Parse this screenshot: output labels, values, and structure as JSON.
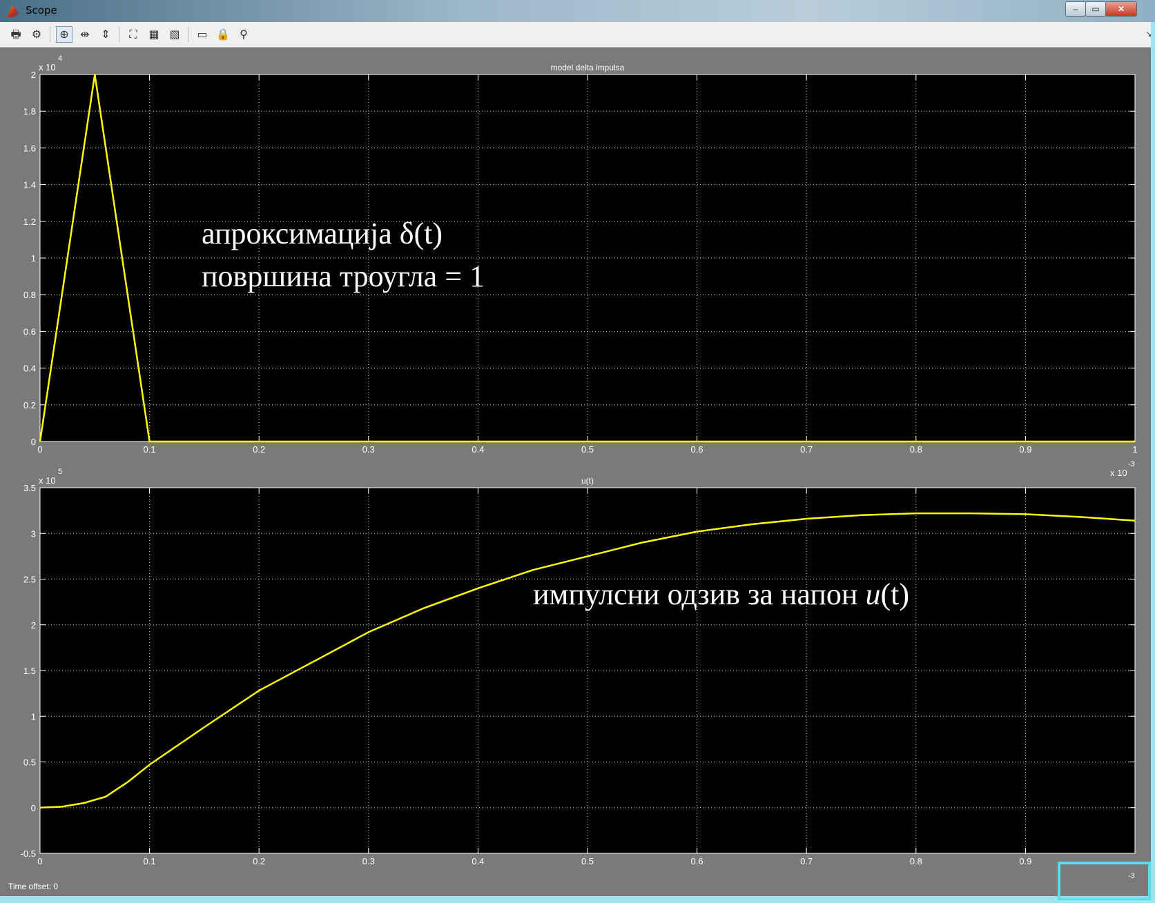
{
  "window": {
    "title": "Scope"
  },
  "toolbar": {
    "items": [
      {
        "name": "print-icon",
        "glyph": "🖶"
      },
      {
        "name": "parameters-icon",
        "glyph": "⚙"
      },
      {
        "name": "zoom-in-icon",
        "glyph": "⊕",
        "active": true
      },
      {
        "name": "zoom-x-icon",
        "glyph": "⇹"
      },
      {
        "name": "zoom-y-icon",
        "glyph": "⇕"
      },
      {
        "name": "autoscale-icon",
        "glyph": "⛶"
      },
      {
        "name": "save-axes-icon",
        "glyph": "▦"
      },
      {
        "name": "restore-axes-icon",
        "glyph": "▧"
      },
      {
        "name": "floating-scope-icon",
        "glyph": "▭"
      },
      {
        "name": "lock-axes-icon",
        "glyph": "🔒"
      },
      {
        "name": "signal-selection-icon",
        "glyph": "⚲"
      }
    ]
  },
  "status": {
    "time_offset": "Time offset:  0"
  },
  "chart_data": [
    {
      "type": "line",
      "title": "model delta impulsa",
      "color": "#ffff00",
      "background": "#000000",
      "grid": true,
      "xlim": [
        0,
        1
      ],
      "ylim": [
        0,
        2
      ],
      "x_ticks": [
        "0",
        "0.1",
        "0.2",
        "0.3",
        "0.4",
        "0.5",
        "0.6",
        "0.7",
        "0.8",
        "0.9",
        "1"
      ],
      "y_ticks": [
        "0",
        "0.2",
        "0.4",
        "0.6",
        "0.8",
        "1",
        "1.2",
        "1.4",
        "1.6",
        "1.8",
        "2"
      ],
      "y_multiplier": {
        "base": "x 10",
        "exp": "4"
      },
      "x_multiplier": {
        "base": "x 10",
        "exp": "-3"
      },
      "x": [
        0,
        0.05,
        0.1,
        1.0
      ],
      "y": [
        0,
        2,
        0,
        0
      ],
      "annotations": [
        "апроксимација δ(t)",
        "површина троугла = 1"
      ]
    },
    {
      "type": "line",
      "title": "u(t)",
      "color": "#ffff00",
      "background": "#000000",
      "grid": true,
      "xlim": [
        0,
        1
      ],
      "ylim": [
        -0.5,
        3.5
      ],
      "x_ticks": [
        "0",
        "0.1",
        "0.2",
        "0.3",
        "0.4",
        "0.5",
        "0.6",
        "0.7",
        "0.8",
        "0.9",
        ""
      ],
      "y_ticks": [
        "-0.5",
        "0",
        "0.5",
        "1",
        "1.5",
        "2",
        "2.5",
        "3",
        "3.5"
      ],
      "y_multiplier": {
        "base": "x 10",
        "exp": "5"
      },
      "x_multiplier": {
        "base": "x 10",
        "exp": "-3"
      },
      "x": [
        0,
        0.02,
        0.04,
        0.06,
        0.08,
        0.1,
        0.15,
        0.2,
        0.25,
        0.3,
        0.35,
        0.4,
        0.45,
        0.5,
        0.55,
        0.6,
        0.65,
        0.7,
        0.75,
        0.8,
        0.85,
        0.9,
        0.95,
        1.0
      ],
      "y": [
        0,
        0.01,
        0.05,
        0.12,
        0.28,
        0.47,
        0.88,
        1.28,
        1.6,
        1.92,
        2.18,
        2.4,
        2.6,
        2.75,
        2.9,
        3.02,
        3.1,
        3.16,
        3.2,
        3.22,
        3.22,
        3.21,
        3.18,
        3.14
      ],
      "annotations": [
        {
          "prefix": "импулсни одзив за напон ",
          "italic": "u",
          "suffix": "(t)"
        }
      ]
    }
  ]
}
